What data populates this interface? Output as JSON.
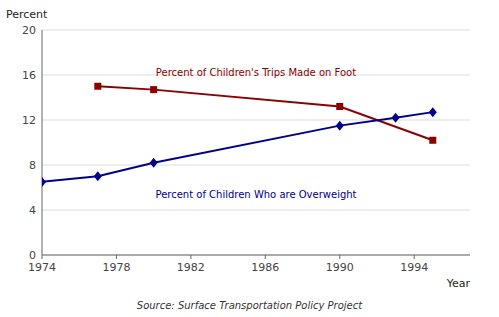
{
  "chart_data": {
    "type": "line",
    "xlabel": "Year",
    "ylabel": "Percent",
    "source": "Source: Surface Transportation Policy Project",
    "series": [
      {
        "name": "Percent of Children's Trips Made on Foot",
        "color": "#8B0000",
        "marker": "square",
        "x": [
          1977,
          1980,
          1990,
          1995
        ],
        "values": [
          15.0,
          14.7,
          13.2,
          10.2
        ]
      },
      {
        "name": "Percent of Children Who are Overweight",
        "color": "#00008B",
        "marker": "diamond",
        "x": [
          1974,
          1977,
          1980,
          1990,
          1993,
          1995
        ],
        "values": [
          6.5,
          7.0,
          8.2,
          11.5,
          12.2,
          12.7
        ]
      }
    ],
    "xlim": [
      1974,
      1997
    ],
    "ylim": [
      0,
      20
    ],
    "xticks": [
      1974,
      1978,
      1982,
      1986,
      1990,
      1994
    ],
    "yticks": [
      0,
      4,
      8,
      12,
      16,
      20
    ],
    "grid": true
  }
}
